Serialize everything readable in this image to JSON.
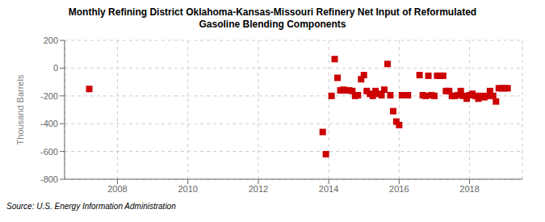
{
  "chart_data": {
    "type": "scatter",
    "title": "Monthly Refining District Oklahoma-Kansas-Missouri Refinery Net Input of Reformulated\nGasoline Blending Components",
    "ylabel": "Thousand Barrels",
    "source": "Source: U.S. Energy Information Administration",
    "color": "#cc0000",
    "marker": "square",
    "grid": true,
    "xlim": [
      2006.5,
      2019.5
    ],
    "xticks": [
      2008,
      2010,
      2012,
      2014,
      2016,
      2018
    ],
    "ylim": [
      -800,
      200
    ],
    "yticks": [
      -800,
      -600,
      -400,
      -200,
      0,
      200
    ],
    "x": [
      2007.2,
      2013.83,
      2013.92,
      2014.08,
      2014.17,
      2014.25,
      2014.33,
      2014.42,
      2014.5,
      2014.58,
      2014.67,
      2014.75,
      2014.83,
      2014.92,
      2015.0,
      2015.08,
      2015.17,
      2015.25,
      2015.33,
      2015.42,
      2015.5,
      2015.58,
      2015.67,
      2015.75,
      2015.83,
      2015.92,
      2016.0,
      2016.08,
      2016.25,
      2016.58,
      2016.67,
      2016.75,
      2016.83,
      2016.92,
      2017.0,
      2017.08,
      2017.17,
      2017.25,
      2017.33,
      2017.42,
      2017.5,
      2017.58,
      2017.67,
      2017.75,
      2017.83,
      2017.92,
      2018.0,
      2018.08,
      2018.17,
      2018.25,
      2018.33,
      2018.42,
      2018.5,
      2018.58,
      2018.67,
      2018.75,
      2018.83,
      2018.92,
      2019.0,
      2019.08
    ],
    "values": [
      -150,
      -460,
      -620,
      -200,
      65,
      -70,
      -160,
      -155,
      -160,
      -160,
      -165,
      -200,
      -195,
      -80,
      -50,
      -165,
      -185,
      -200,
      -165,
      -185,
      -195,
      -155,
      30,
      -195,
      -310,
      -385,
      -410,
      -195,
      -195,
      -50,
      -195,
      -200,
      -55,
      -195,
      -200,
      -55,
      -55,
      -55,
      -165,
      -165,
      -200,
      -200,
      -195,
      -165,
      -200,
      -220,
      -195,
      -185,
      -200,
      -220,
      -200,
      -210,
      -200,
      -165,
      -200,
      -240,
      -145,
      -145,
      -145,
      -145
    ]
  }
}
